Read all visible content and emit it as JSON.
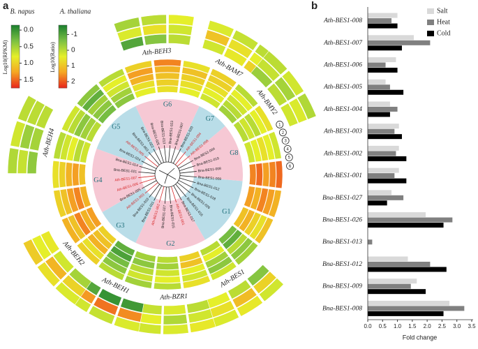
{
  "panel_a": {
    "label": "a",
    "legend_napus": {
      "title": "B. napus",
      "axis_label": "Log10(RPKM)",
      "lim": [
        -0.15,
        1.75
      ],
      "colors": [
        "#1a7f2e",
        "#7bc043",
        "#e5ef2a",
        "#f5a623",
        "#e8261b"
      ],
      "ticks": [
        {
          "value": 0,
          "label": "0.0"
        },
        0.5,
        {
          "value": 1,
          "label": "1.0"
        },
        1.5
      ]
    },
    "legend_thaliana": {
      "title": "A. thaliana",
      "axis_label": "Log10(Ratio)",
      "lim": [
        -1.6,
        2.4
      ],
      "colors": [
        "#1a7f2e",
        "#7bc043",
        "#e5ef2a",
        "#f5a623",
        "#e8261b"
      ],
      "ticks": [
        -1,
        0,
        1,
        2
      ]
    },
    "groups": [
      "G1",
      "G2",
      "G3",
      "G4",
      "G5",
      "G6",
      "G7",
      "G8"
    ],
    "group_colors": [
      "#b9dde8",
      "#f6c8d4"
    ],
    "leaves": [
      {
        "name": "Bna-BES1-023"
      },
      {
        "name": "Bna-BES1-007"
      },
      {
        "name": "Bna-BES1-020"
      },
      {
        "name": "Ath-BES1-004",
        "color": "#d62728"
      },
      {
        "name": "Ath-BES1-008",
        "color": "#d62728"
      },
      {
        "name": "Bna-BES1-004"
      },
      {
        "name": "Bna-BES1-019"
      },
      {
        "name": "Bna-BES1-008"
      },
      {
        "name": "Bna-BES1-009"
      },
      {
        "name": "Bna-BES1-012"
      },
      {
        "name": "Bna-BES1-018"
      },
      {
        "name": "Bna-BES1-026"
      },
      {
        "name": "Bna-BES1-016"
      },
      {
        "name": "Bna-BES1-017"
      },
      {
        "name": "Ath-BES1-001",
        "color": "#d62728"
      },
      {
        "name": "Bna-BES1-015"
      },
      {
        "name": "Bna-BES1-027"
      },
      {
        "name": "Ath-BES1-002",
        "color": "#d62728"
      },
      {
        "name": "Bna-BES1-011"
      },
      {
        "name": "Bna-BES1-010"
      },
      {
        "name": "Ath-BES1-003",
        "color": "#d62728"
      },
      {
        "name": "Bna-BES1-005"
      },
      {
        "name": "Ath-BES1-006",
        "color": "#d62728"
      },
      {
        "name": "Ath-BES1-007",
        "color": "#d62728"
      },
      {
        "name": "Bna-BES1-021"
      },
      {
        "name": "Bna-BES1-014"
      },
      {
        "name": "Bna-BES1-024"
      },
      {
        "name": "Ath-BES1-005",
        "color": "#d62728"
      },
      {
        "name": "Bna-BES1-003"
      },
      {
        "name": "Bna-BES1-022"
      },
      {
        "name": "Bna-BES1-025"
      },
      {
        "name": "Bna-BES1-013"
      }
    ],
    "inner_heatmap": [
      [
        0.9,
        1.0,
        1.1,
        1.2,
        1.4
      ],
      [
        0.8,
        0.9,
        1.0,
        1.1,
        0.9
      ],
      [
        0.7,
        0.8,
        0.9,
        1.0,
        1.0
      ],
      [
        0.5,
        0.6,
        0.7,
        0.8,
        0.6
      ],
      [
        0.6,
        0.7,
        0.6,
        0.8,
        0.9
      ],
      [
        0.7,
        0.8,
        0.9,
        0.8,
        0.7
      ],
      [
        1.4,
        1.5,
        1.3,
        1.4,
        1.5
      ],
      [
        1.3,
        1.2,
        1.4,
        1.3,
        1.2
      ],
      [
        1.1,
        1.2,
        1.0,
        0.9,
        1.1
      ],
      [
        0.3,
        0.2,
        0.6,
        0.4,
        0.5
      ],
      [
        0.6,
        0.8,
        0.5,
        0.4,
        0.7
      ],
      [
        1.0,
        1.1,
        0.8,
        0.7,
        0.9
      ],
      [
        0.6,
        0.5,
        0.7,
        0.8,
        0.6
      ],
      [
        0.5,
        0.4,
        0.6,
        0.7,
        0.5
      ],
      [
        0.2,
        0.1,
        0.3,
        0.4,
        0.6
      ],
      [
        1.0,
        1.1,
        1.2,
        0.9,
        1.0
      ],
      [
        1.3,
        1.2,
        1.4,
        1.1,
        1.2
      ],
      [
        1.2,
        1.4,
        1.3,
        1.1,
        1.0
      ],
      [
        1.1,
        1.3,
        1.2,
        1.0,
        0.9
      ],
      [
        0.7,
        0.6,
        0.8,
        0.7,
        0.6
      ],
      [
        0.6,
        0.5,
        0.4,
        0.6,
        0.7
      ],
      [
        0.3,
        0.4,
        0.5,
        0.2,
        0.4
      ],
      [
        0.4,
        0.5,
        0.7,
        0.8,
        0.6
      ],
      [
        0.8,
        0.9,
        1.2,
        1.3,
        1.0
      ]
    ],
    "genes": [
      {
        "name": "Ath-BEH3",
        "values": [
          -1,
          -0.5,
          0,
          0.3,
          0.6,
          0.2,
          -0.2,
          0,
          0.4
        ]
      },
      {
        "name": "Ath-BAM7",
        "values": [
          0.2,
          0.5,
          0.8,
          1.0,
          0.6,
          0.4,
          0.3,
          0.1,
          0
        ]
      },
      {
        "name": "Ath-BMY2",
        "values": [
          -0.3,
          0,
          0.2,
          0.1,
          -0.2,
          0.3,
          0,
          0.2,
          -0.1
        ]
      },
      {
        "name": "Ath-BES1",
        "values": [
          -0.5,
          0,
          0.4,
          0.8,
          1.1,
          0.6,
          0.2,
          0.5,
          0.3
        ]
      },
      {
        "name": "Ath-BZR1",
        "values": [
          0,
          0.3,
          0.1,
          0.2,
          -0.1,
          0.4,
          0.5,
          0.3,
          0.2
        ]
      },
      {
        "name": "Ath-BEH1",
        "values": [
          -1.2,
          -1.3,
          -1,
          1.6,
          1.8,
          1.5,
          0.3,
          0.1,
          0.2
        ]
      },
      {
        "name": "Ath-BEH2",
        "values": [
          -0.2,
          0.2,
          0.5,
          0.8,
          1.2,
          0.4,
          0.3,
          0.6,
          0.9
        ]
      },
      {
        "name": "Ath-BEH4",
        "values": [
          -0.4,
          -0.2,
          0,
          0.1,
          -0.3,
          0,
          -0.1,
          0.2,
          0
        ]
      }
    ],
    "circled": [
      "1",
      "2",
      "3",
      "4",
      "5",
      "6"
    ]
  },
  "chart_data": {
    "type": "bar",
    "orientation": "horizontal",
    "panel_label": "b",
    "categories": [
      "Ath-BES1-008",
      "Ath-BES1-007",
      "Ath-BES1-006",
      "Ath-BES1-005",
      "Ath-BES1-004",
      "Ath-BES1-003",
      "Ath-BES1-002",
      "Ath-BES1-001",
      "Bna-BES1-027",
      "Bna-BES1-026",
      "Bna-BES1-013",
      "Bna-BES1-012",
      "Bna-BES1-009",
      "Bna-BES1-008"
    ],
    "series": [
      {
        "name": "Salt",
        "color": "#d9d9d9",
        "values": [
          1.0,
          1.55,
          0.95,
          0.6,
          0.75,
          1.05,
          1.05,
          1.05,
          0.8,
          1.95,
          0,
          1.35,
          1.65,
          2.75
        ]
      },
      {
        "name": "Heat",
        "color": "#808080",
        "values": [
          0.8,
          2.1,
          0.6,
          0.75,
          1.0,
          0.9,
          0.95,
          0.9,
          1.2,
          2.85,
          0.15,
          2.1,
          1.45,
          3.25
        ]
      },
      {
        "name": "Cold",
        "color": "#000000",
        "values": [
          1.0,
          1.15,
          1.0,
          1.2,
          0.75,
          1.15,
          1.3,
          1.3,
          0.65,
          2.55,
          0,
          2.65,
          1.95,
          2.55
        ]
      }
    ],
    "xlim": [
      0,
      3.5
    ],
    "xticks": [
      {
        "value": 0,
        "label": "0.0"
      },
      0.5,
      {
        "value": 1,
        "label": "1.0"
      },
      1.5,
      {
        "value": 2,
        "label": "2.0"
      },
      2.5,
      {
        "value": 3,
        "label": "3.0"
      },
      3.5
    ],
    "xlabel": "Fold change",
    "legend": "upper-right"
  }
}
